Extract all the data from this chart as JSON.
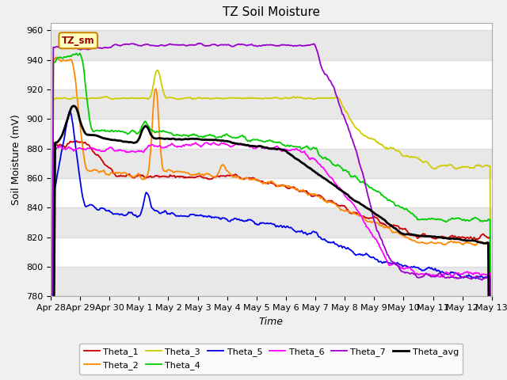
{
  "title": "TZ Soil Moisture",
  "xlabel": "Time",
  "ylabel": "Soil Moisture (mV)",
  "ylim": [
    780,
    965
  ],
  "fig_bg": "#f0f0f0",
  "plot_bg": "#ffffff",
  "series_colors": {
    "Theta_1": "#cc0000",
    "Theta_2": "#ff8800",
    "Theta_3": "#cccc00",
    "Theta_4": "#00cc00",
    "Theta_5": "#0000ee",
    "Theta_6": "#ff00ff",
    "Theta_7": "#9900cc",
    "Theta_avg": "#000000"
  },
  "x_ticks": [
    "Apr 28",
    "Apr 29",
    "Apr 30",
    "May 1",
    "May 2",
    "May 3",
    "May 4",
    "May 5",
    "May 6",
    "May 7",
    "May 8",
    "May 9",
    "May 10",
    "May 11",
    "May 12",
    "May 13"
  ],
  "yticks": [
    780,
    800,
    820,
    840,
    860,
    880,
    900,
    920,
    940,
    960
  ],
  "num_points": 500
}
